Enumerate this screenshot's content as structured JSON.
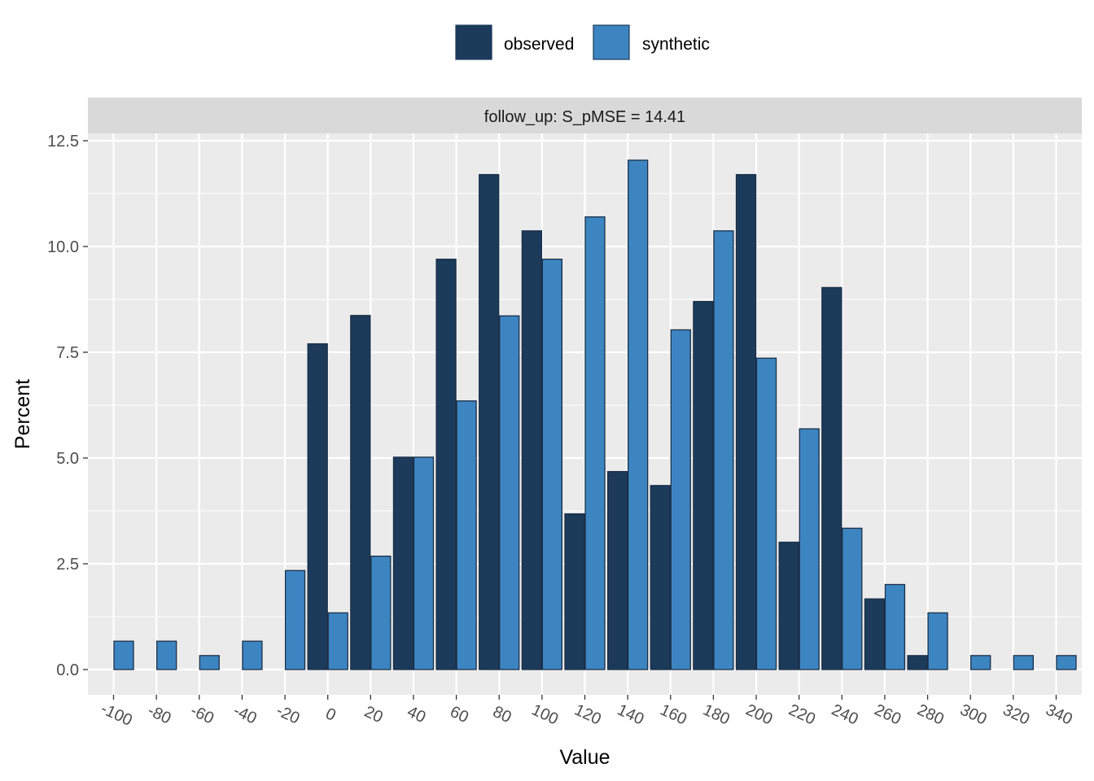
{
  "chart_data": {
    "type": "bar",
    "facet_label": "follow_up: S_pMSE = 14.41",
    "xlabel": "Value",
    "ylabel": "Percent",
    "ylim": [
      -0.5,
      12.5
    ],
    "yticks": [
      0.0,
      2.5,
      5.0,
      7.5,
      10.0,
      12.5
    ],
    "ytick_labels": [
      "0.0",
      "2.5",
      "5.0",
      "7.5",
      "10.0",
      "12.5"
    ],
    "categories": [
      "-100",
      "-80",
      "-60",
      "-40",
      "-20",
      "0",
      "20",
      "40",
      "60",
      "80",
      "100",
      "120",
      "140",
      "160",
      "180",
      "200",
      "220",
      "240",
      "260",
      "280",
      "300",
      "320",
      "340"
    ],
    "legend_position": "top",
    "series": [
      {
        "name": "observed",
        "color": "#1c3a5a",
        "values": [
          0,
          0,
          0,
          0,
          0,
          7.7,
          8.37,
          5.02,
          9.7,
          11.7,
          10.37,
          3.68,
          4.68,
          4.35,
          8.7,
          11.7,
          3.01,
          9.03,
          1.67,
          0.33,
          0,
          0,
          0
        ]
      },
      {
        "name": "synthetic",
        "color": "#3d85c1",
        "values": [
          0.67,
          0.67,
          0.33,
          0.67,
          2.34,
          1.34,
          2.68,
          5.02,
          6.35,
          8.36,
          9.7,
          10.7,
          12.04,
          8.03,
          10.37,
          7.36,
          5.69,
          3.34,
          2.01,
          1.34,
          0.33,
          0.33,
          0.33
        ]
      }
    ]
  }
}
